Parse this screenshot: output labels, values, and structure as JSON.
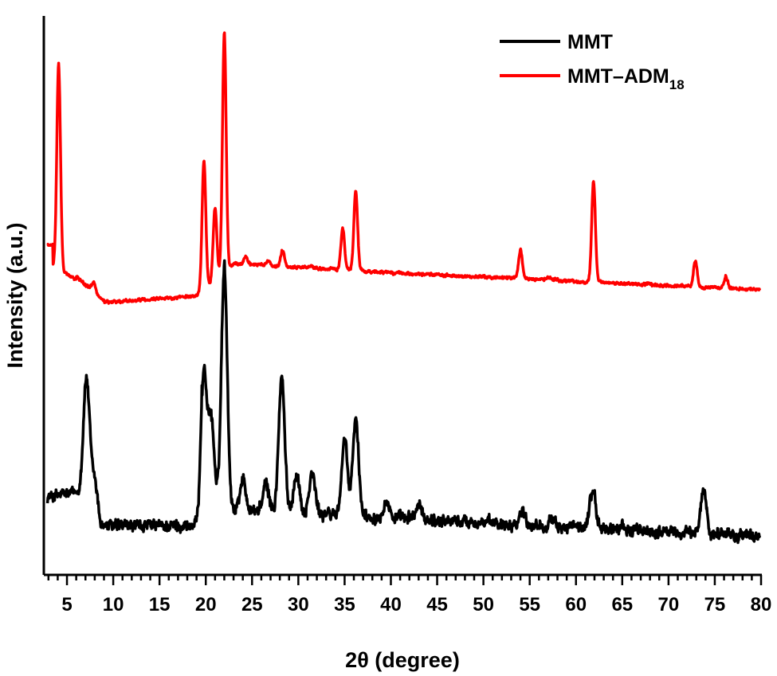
{
  "chart_data": {
    "type": "line",
    "xlabel": "2θ (degree)",
    "ylabel": "Intensity (a.u.)",
    "xlim": [
      2.5,
      80
    ],
    "ylim": [
      0,
      10.5
    ],
    "x_ticks": [
      5,
      10,
      15,
      20,
      25,
      30,
      35,
      40,
      45,
      50,
      55,
      60,
      65,
      70,
      75,
      80
    ],
    "x_tick_labels": [
      "5",
      "10",
      "15",
      "20",
      "25",
      "30",
      "35",
      "40",
      "45",
      "50",
      "55",
      "60",
      "65",
      "70",
      "75",
      "80"
    ],
    "y_ticks_shown": false,
    "grid": false,
    "legend_position": "top-right",
    "series": [
      {
        "name": "MMT",
        "name_main": "MMT",
        "name_sub": "",
        "color": "#000000",
        "peaks": [
          [
            7.1,
            3.7
          ],
          [
            8.0,
            1.8
          ],
          [
            19.8,
            3.8
          ],
          [
            20.6,
            2.9
          ],
          [
            22.0,
            5.8
          ],
          [
            24.0,
            1.8
          ],
          [
            26.5,
            1.7
          ],
          [
            28.2,
            3.7
          ],
          [
            29.8,
            1.9
          ],
          [
            31.5,
            1.9
          ],
          [
            35.0,
            2.5
          ],
          [
            36.2,
            2.9
          ],
          [
            39.5,
            1.4
          ],
          [
            43.0,
            1.3
          ],
          [
            49.0,
            0.9
          ],
          [
            54.2,
            1.2
          ],
          [
            57.3,
            1.0
          ],
          [
            61.8,
            1.6
          ],
          [
            64.8,
            0.9
          ],
          [
            73.8,
            1.6
          ],
          [
            76.3,
            0.8
          ]
        ]
      },
      {
        "name": "MMT–ADM18",
        "name_main": "MMT–ADM",
        "name_sub": "18",
        "color": "#ff0000",
        "peaks": [
          [
            4.1,
            9.6
          ],
          [
            7.9,
            5.5
          ],
          [
            19.8,
            7.8
          ],
          [
            21.0,
            6.9
          ],
          [
            22.0,
            10.2
          ],
          [
            24.3,
            6.0
          ],
          [
            26.7,
            5.9
          ],
          [
            28.3,
            6.1
          ],
          [
            31.3,
            5.8
          ],
          [
            34.8,
            6.5
          ],
          [
            36.2,
            7.2
          ],
          [
            45.0,
            5.5
          ],
          [
            48.5,
            5.5
          ],
          [
            54.0,
            6.1
          ],
          [
            57.0,
            5.6
          ],
          [
            61.9,
            7.4
          ],
          [
            72.9,
            5.9
          ],
          [
            76.2,
            5.6
          ]
        ]
      }
    ]
  }
}
